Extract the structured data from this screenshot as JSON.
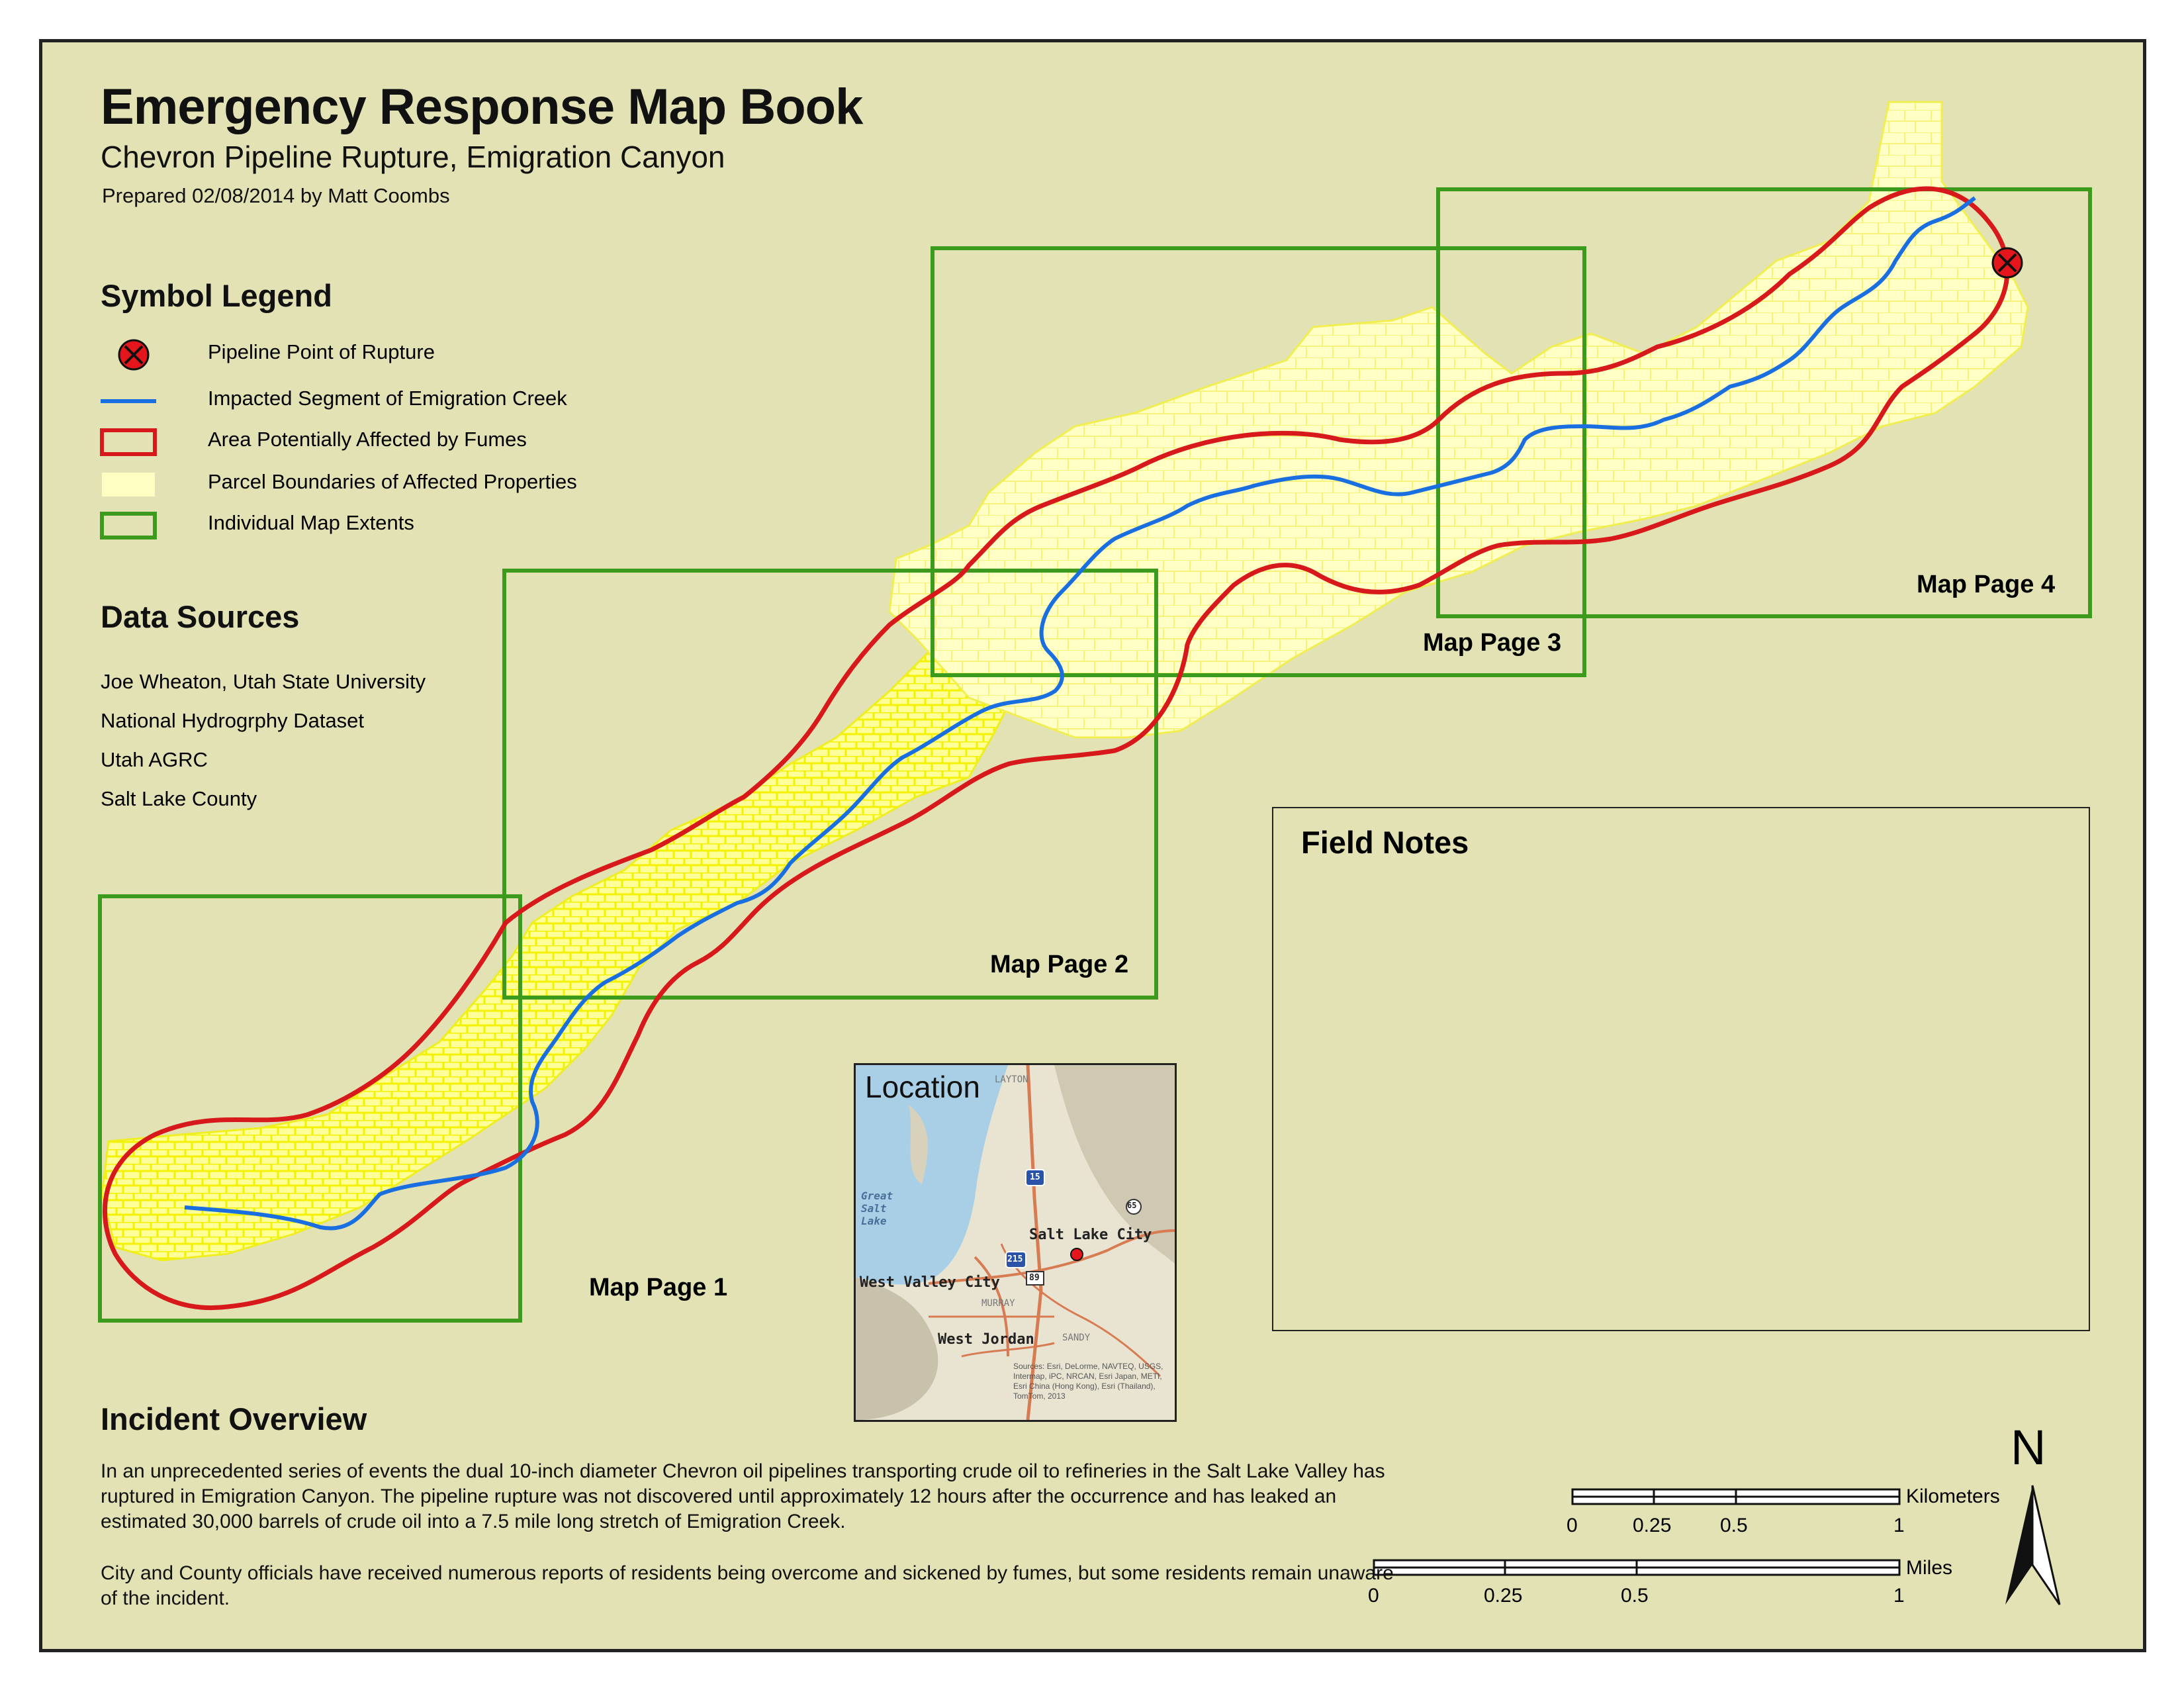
{
  "title": "Emergency Response Map Book",
  "subtitle": "Chevron Pipeline Rupture, Emigration Canyon",
  "prepared": "Prepared 02/08/2014 by Matt Coombs",
  "legend": {
    "heading": "Symbol Legend",
    "items": [
      {
        "label": "Pipeline Point of Rupture",
        "icon": "rupture-point-icon"
      },
      {
        "label": "Impacted Segment of Emigration Creek",
        "icon": "creek-line-icon"
      },
      {
        "label": "Area Potentially Affected by Fumes",
        "icon": "fume-area-icon"
      },
      {
        "label": "Parcel Boundaries of Affected Properties",
        "icon": "parcel-icon"
      },
      {
        "label": "Individual Map Extents",
        "icon": "map-extent-icon"
      }
    ]
  },
  "data_sources": {
    "heading": "Data Sources",
    "items": [
      "Joe Wheaton, Utah State University",
      "National Hydrogrphy Dataset",
      "Utah AGRC",
      "Salt Lake County"
    ]
  },
  "map_pages": [
    "Map Page 1",
    "Map Page 2",
    "Map Page 3",
    "Map Page 4"
  ],
  "field_notes": {
    "title": "Field Notes"
  },
  "inset": {
    "title": "Location",
    "lake_label": "Great Salt Lake",
    "cities": [
      "Salt Lake City",
      "West Valley City",
      "West Jordan"
    ],
    "minor_labels": [
      "LAYTON",
      "MURRAY",
      "SANDY"
    ],
    "shields": [
      "15",
      "215",
      "89",
      "65"
    ],
    "credit": "Sources: Esri, DeLorme, NAVTEQ, USGS, Intermap, iPC, NRCAN, Esri Japan, METI, Esri China (Hong Kong), Esri (Thailand), TomTom, 2013"
  },
  "overview": {
    "heading": "Incident Overview",
    "p1": "In an unprecedented series of events the dual 10-inch diameter Chevron oil pipelines transporting crude oil to refineries in the Salt Lake Valley has ruptured in Emigration Canyon.  The pipeline rupture was not discovered until approximately 12 hours after the occurrence and has leaked an estimated 30,000 barrels of crude oil into a 7.5 mile long stretch of Emigration Creek.",
    "p2": "City and County officials have received numerous reports of residents being overcome and sickened by fumes, but some residents remain unaware of the incident."
  },
  "scale": {
    "km_unit": "Kilometers",
    "km_ticks": [
      "0",
      "0.25",
      "0.5",
      "1"
    ],
    "mi_unit": "Miles",
    "mi_ticks": [
      "0",
      "0.25",
      "0.5",
      "1"
    ]
  },
  "north": "N",
  "colors": {
    "background": "#e2e2b4",
    "parcel_fill": "#ffffc4",
    "parcel_line": "#f0f000",
    "creek": "#1a6fe0",
    "fume_outline": "#d7191c",
    "extent": "#3c9a1c"
  }
}
